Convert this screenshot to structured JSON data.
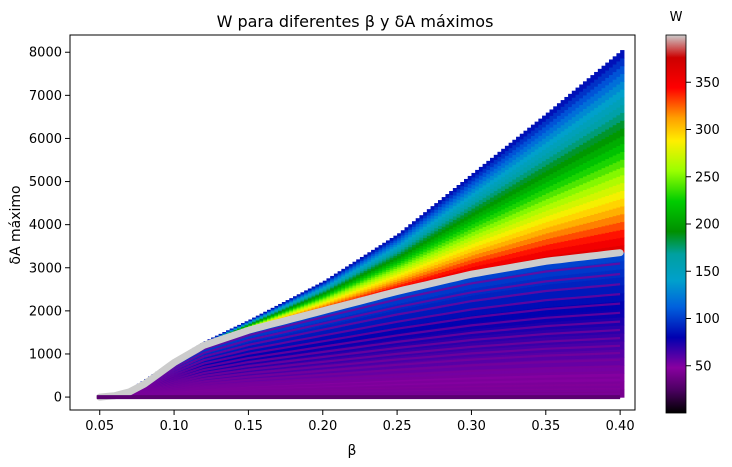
{
  "chart_data": {
    "type": "scatter",
    "title": "W para diferentes β y δA máximos",
    "xlabel": "β",
    "ylabel": "δA máximo",
    "xlim": [
      0.03,
      0.41
    ],
    "ylim": [
      -300,
      8400
    ],
    "xticks": [
      0.05,
      0.1,
      0.15,
      0.2,
      0.25,
      0.3,
      0.35,
      0.4
    ],
    "xtick_labels": [
      "0.05",
      "0.10",
      "0.15",
      "0.20",
      "0.25",
      "0.30",
      "0.35",
      "0.40"
    ],
    "yticks": [
      0,
      1000,
      2000,
      3000,
      4000,
      5000,
      6000,
      7000,
      8000
    ],
    "ytick_labels": [
      "0",
      "1000",
      "2000",
      "3000",
      "4000",
      "5000",
      "6000",
      "7000",
      "8000"
    ],
    "grid": false,
    "colormap": "nipy_spectral",
    "colorbar": {
      "label": "W",
      "range": [
        0,
        400
      ],
      "ticks": [
        50,
        100,
        150,
        200,
        250,
        300,
        350
      ],
      "tick_labels": [
        "50",
        "100",
        "150",
        "200",
        "250",
        "300",
        "350"
      ]
    },
    "series": [
      {
        "role": "upper_envelope",
        "x": [
          0.05,
          0.06,
          0.07,
          0.08,
          0.1,
          0.12,
          0.15,
          0.2,
          0.25,
          0.3,
          0.35,
          0.4
        ],
        "y": [
          0,
          60,
          200,
          420,
          880,
          1300,
          1800,
          2700,
          3800,
          5200,
          6600,
          8050
        ]
      },
      {
        "role": "gray_boundary_W_max",
        "color": "#cccccc",
        "x": [
          0.05,
          0.06,
          0.07,
          0.08,
          0.1,
          0.12,
          0.15,
          0.2,
          0.25,
          0.3,
          0.35,
          0.4
        ],
        "y": [
          0,
          30,
          120,
          300,
          800,
          1200,
          1550,
          2000,
          2450,
          2850,
          3150,
          3350
        ]
      }
    ]
  }
}
